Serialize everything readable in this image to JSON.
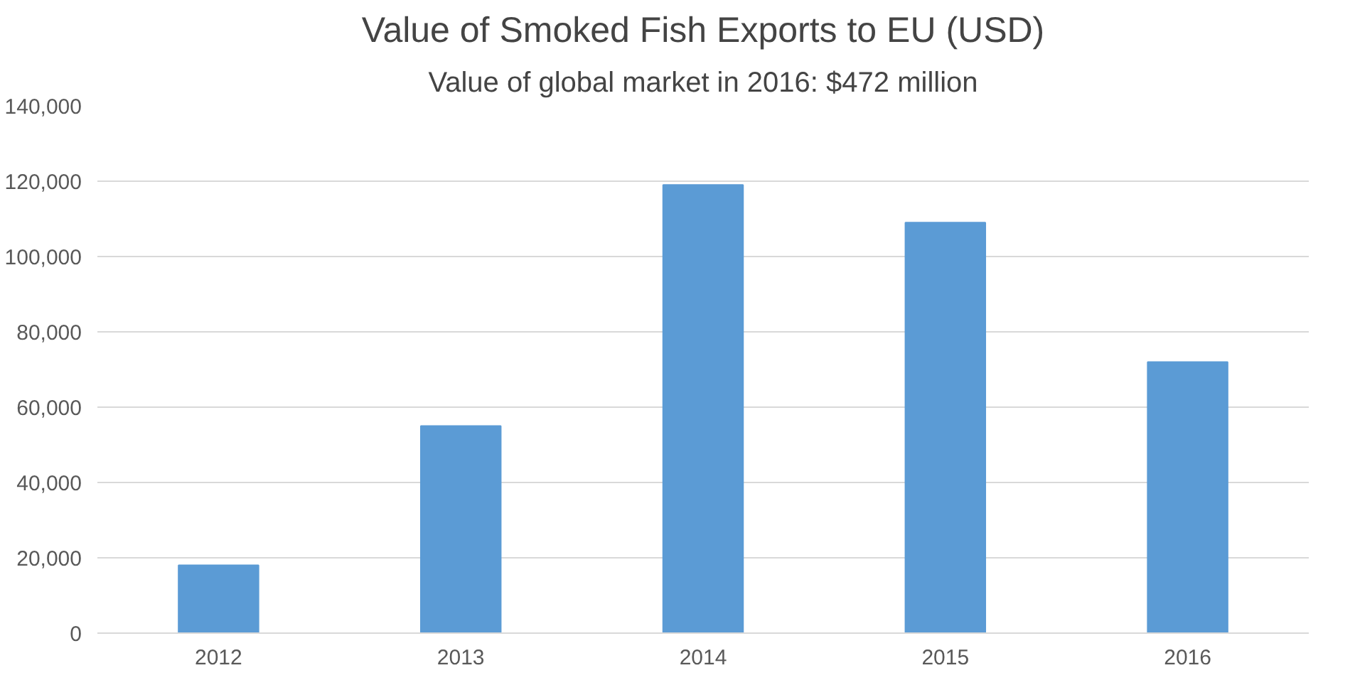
{
  "chart_data": {
    "type": "bar",
    "title": "Value of Smoked Fish Exports to EU (USD)",
    "subtitle": "Value of global market in 2016: $472 million",
    "categories": [
      "2012",
      "2013",
      "2014",
      "2015",
      "2016"
    ],
    "values": [
      18000,
      55000,
      119000,
      109000,
      72000
    ],
    "color": "#5b9bd5",
    "ylim": [
      0,
      140000
    ],
    "yticks": [
      {
        "value": 0,
        "label": "0"
      },
      {
        "value": 20000,
        "label": "20,000"
      },
      {
        "value": 40000,
        "label": "40,000"
      },
      {
        "value": 60000,
        "label": "60,000"
      },
      {
        "value": 80000,
        "label": "80,000"
      },
      {
        "value": 100000,
        "label": "100,000"
      },
      {
        "value": 120000,
        "label": "120,000"
      },
      {
        "value": 140000,
        "label": "140,000"
      }
    ],
    "grid": "y"
  }
}
